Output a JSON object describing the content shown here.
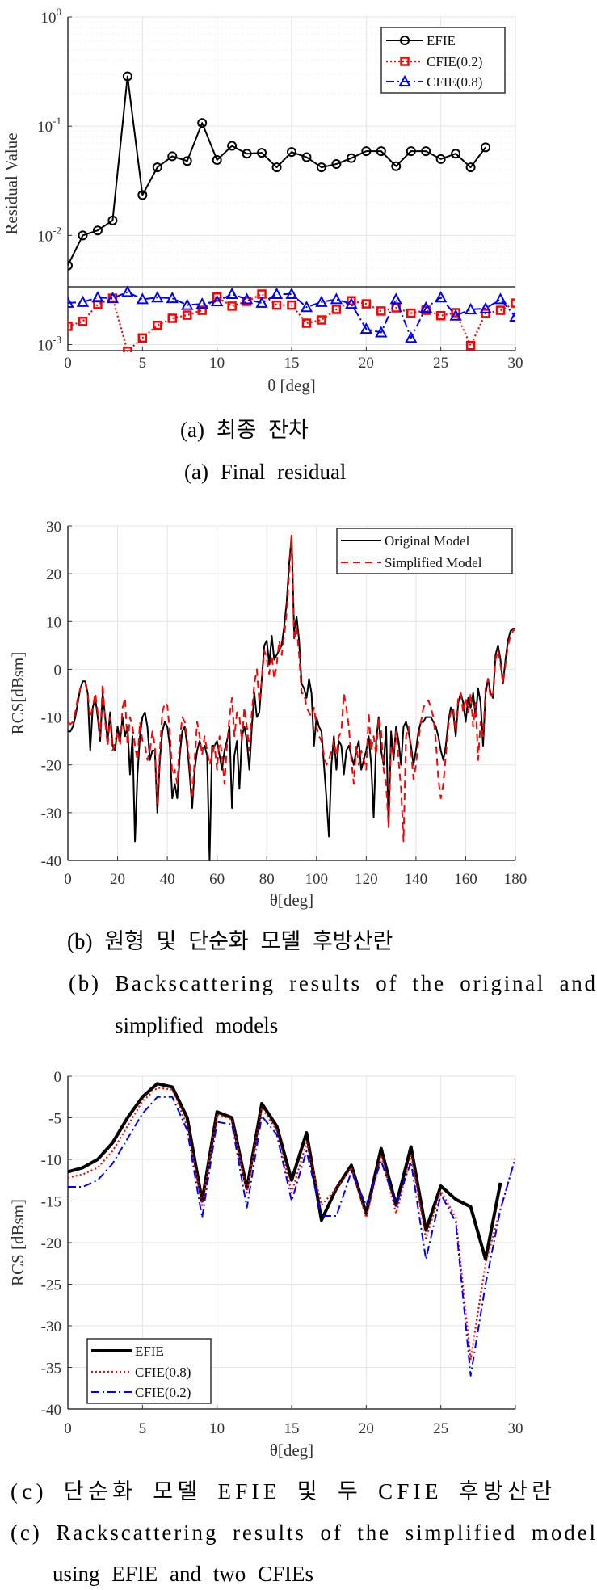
{
  "chart_data": [
    {
      "id": "a",
      "type": "line",
      "yscale": "log",
      "xlabel": "θ [deg]",
      "ylabel": "Residual Value",
      "xlim": [
        0,
        30
      ],
      "ylim": [
        0.00088,
        1
      ],
      "xticks": [
        0,
        5,
        10,
        15,
        20,
        25,
        30
      ],
      "yticks": [
        {
          "value": 1,
          "base": "10",
          "exp": "0"
        },
        {
          "value": 0.1,
          "base": "10",
          "exp": "-1"
        },
        {
          "value": 0.01,
          "base": "10",
          "exp": "-2"
        },
        {
          "value": 0.001,
          "base": "10",
          "exp": "-3"
        }
      ],
      "grid": true,
      "legend_position": "top-right",
      "caption_ko": "(a) 최종 잔차",
      "caption_en": [
        "(a) Final residual"
      ],
      "series": [
        {
          "name": "EFIE",
          "color": "#000000",
          "style": "solid",
          "marker": "circle",
          "x": [
            0,
            1,
            2,
            3,
            4,
            5,
            6,
            7,
            8,
            9,
            10,
            11,
            12,
            13,
            14,
            15,
            16,
            17,
            18,
            19,
            20,
            21,
            22,
            23,
            24,
            25,
            26,
            27,
            28
          ],
          "values": [
            0.0053,
            0.01,
            0.0111,
            0.0137,
            0.286,
            0.0234,
            0.042,
            0.053,
            0.048,
            0.107,
            0.049,
            0.066,
            0.056,
            0.057,
            0.042,
            0.058,
            0.052,
            0.042,
            0.045,
            0.051,
            0.059,
            0.059,
            0.043,
            0.059,
            0.059,
            0.05,
            0.056,
            0.042,
            0.064
          ]
        },
        {
          "name": "CFIE(0.2)",
          "color": "#ff0000",
          "style": "dotted",
          "marker": "square",
          "x": [
            0,
            1,
            2,
            3,
            4,
            5,
            6,
            7,
            8,
            9,
            10,
            11,
            12,
            13,
            14,
            15,
            16,
            17,
            18,
            19,
            20,
            21,
            22,
            23,
            24,
            25,
            26,
            27,
            28,
            29,
            30
          ],
          "values": [
            0.00147,
            0.00163,
            0.00233,
            0.00266,
            0.00087,
            0.00115,
            0.0015,
            0.00174,
            0.00186,
            0.00206,
            0.00272,
            0.00225,
            0.00249,
            0.0029,
            0.0023,
            0.0023,
            0.00157,
            0.00168,
            0.0021,
            0.00252,
            0.00236,
            0.00203,
            0.00217,
            0.00194,
            0.00206,
            0.00184,
            0.00196,
            0.00098,
            0.00193,
            0.00206,
            0.0024
          ]
        },
        {
          "name": "CFIE(0.8)",
          "color": "#0000ff",
          "style": "dashdot",
          "marker": "triangle",
          "x": [
            0,
            1,
            2,
            3,
            4,
            5,
            6,
            7,
            8,
            9,
            10,
            11,
            12,
            13,
            14,
            15,
            16,
            17,
            18,
            19,
            20,
            21,
            22,
            23,
            24,
            25,
            26,
            27,
            28,
            29,
            30
          ],
          "values": [
            0.00241,
            0.00245,
            0.0027,
            0.00266,
            0.00303,
            0.0026,
            0.0027,
            0.00266,
            0.0023,
            0.00236,
            0.00249,
            0.0029,
            0.0026,
            0.00241,
            0.0029,
            0.0029,
            0.0022,
            0.00245,
            0.0026,
            0.00236,
            0.00139,
            0.00129,
            0.0026,
            0.00115,
            0.00217,
            0.0027,
            0.00184,
            0.0021,
            0.00214,
            0.0026,
            0.0018
          ]
        }
      ]
    },
    {
      "id": "b",
      "type": "line",
      "xlabel": "θ[deg]",
      "ylabel": "RCS[dBsm]",
      "xlim": [
        0,
        180
      ],
      "ylim": [
        -40,
        30
      ],
      "xticks": [
        0,
        20,
        40,
        60,
        80,
        100,
        120,
        140,
        160,
        180
      ],
      "yticks": [
        30,
        20,
        10,
        0,
        -10,
        -20,
        -30,
        -40
      ],
      "grid": true,
      "legend_position": "top-right",
      "caption_ko": "(b) 원형 및 단순화 모델 후방산란",
      "caption_en": [
        "(b) Backscattering results of the original and",
        "simplified models"
      ],
      "series": [
        {
          "name": "Original Model",
          "color": "#000000",
          "style": "solid",
          "values": [
            -13,
            -13,
            -12,
            -10,
            -7,
            -4,
            -2.5,
            -2.5,
            -5,
            -17,
            -8,
            -6,
            -10,
            -15,
            -5,
            -10,
            -15,
            -9,
            -16,
            -17,
            -12,
            -15,
            -10,
            -14,
            -12,
            -22,
            -14,
            -36,
            -22,
            -14,
            -10,
            -9,
            -12,
            -19,
            -17,
            -17,
            -30,
            -19,
            -13,
            -11,
            -12,
            -16,
            -27,
            -24,
            -27,
            -18,
            -13,
            -12,
            -16,
            -22,
            -29,
            -21,
            -17,
            -15,
            -17,
            -16,
            -18,
            -40,
            -16,
            -16,
            -15,
            -18,
            -21,
            -17,
            -15,
            -12,
            -29,
            -18,
            -15,
            -25,
            -14,
            -12,
            -15,
            -21,
            -12,
            -5,
            -10,
            -9,
            -2,
            5,
            6,
            1,
            7,
            2,
            3,
            4,
            5,
            9,
            14,
            22,
            28,
            8,
            11,
            6,
            -3,
            -4,
            -6,
            -2,
            -5,
            -16,
            -10,
            -12,
            -13,
            -20,
            -27,
            -35,
            -20,
            -14,
            -21,
            -15,
            -16,
            -22,
            -17,
            -16,
            -18,
            -20,
            -17,
            -15,
            -21,
            -19,
            -17,
            -14,
            -20,
            -31,
            -15,
            -10,
            -17,
            -20,
            -12,
            -33,
            -13,
            -19,
            -12,
            -15,
            -20,
            -12,
            -11,
            -13,
            -16,
            -20,
            -17,
            -13,
            -11,
            -11,
            -10,
            -10,
            -10,
            -11,
            -12,
            -14,
            -17,
            -19,
            -16,
            -11,
            -8,
            -9,
            -14,
            -7,
            -5,
            -7,
            -11,
            -6,
            -8,
            -5,
            -10,
            -4,
            -7,
            -16,
            -5,
            -2,
            -5,
            -6,
            3,
            5,
            2,
            -3,
            2,
            6,
            8,
            8.5,
            8.5
          ]
        },
        {
          "name": "Simplified Model",
          "color": "#ff0000",
          "style": "dashed",
          "values": [
            -11,
            -11.5,
            -11,
            -9,
            -6,
            -4,
            -3,
            -3,
            -5,
            -10,
            -8,
            -5,
            -9,
            -14,
            -3,
            -11,
            -16,
            -10,
            -17,
            -15,
            -13,
            -16,
            -8,
            -6,
            -16,
            -10,
            -12,
            -16,
            -19,
            -11,
            -15,
            -16,
            -19,
            -17,
            -13,
            -16,
            -28,
            -17,
            -9,
            -7,
            -7.5,
            -13,
            -22,
            -21,
            -24,
            -15,
            -10,
            -11,
            -15,
            -20,
            -27,
            -19,
            -11,
            -14,
            -18,
            -14,
            -17,
            -20,
            -18,
            -16,
            -21,
            -14,
            -18,
            -24,
            -16,
            -10,
            -6,
            -14,
            -9,
            -10,
            -15,
            -8,
            -12,
            -17,
            -9,
            -3,
            0,
            -7,
            -2,
            4,
            2,
            -1,
            3,
            -2,
            1,
            6,
            3,
            7,
            12,
            20,
            28,
            6,
            9,
            3,
            -5,
            -5,
            -8,
            -9,
            -10,
            -8,
            -12,
            -14,
            -15,
            -18,
            -20,
            -19,
            -17,
            -15,
            -18,
            -14,
            -13,
            -5,
            -8,
            -12,
            -19,
            -24,
            -16,
            -20,
            -17,
            -19,
            -21,
            -9,
            -17,
            -14,
            -18,
            -10,
            -13,
            -21,
            -24,
            -33,
            -16,
            -18,
            -13,
            -19,
            -25,
            -36,
            -14,
            -12,
            -17,
            -23,
            -20,
            -15,
            -11,
            -8,
            -7,
            -6.5,
            -8,
            -10,
            -15,
            -23,
            -27,
            -24,
            -18,
            -12,
            -9,
            -8,
            -13,
            -6,
            -5,
            -9,
            -6,
            -9,
            -5,
            -12,
            -7,
            -19,
            -11,
            -14,
            -4,
            -2,
            -6,
            -5,
            2,
            4,
            1,
            -3,
            1,
            5,
            7,
            8,
            8.5
          ]
        }
      ]
    },
    {
      "id": "c",
      "type": "line",
      "xlabel": "θ[deg]",
      "ylabel": "RCS [dBsm]",
      "xlim": [
        0,
        30
      ],
      "ylim": [
        -40,
        0
      ],
      "xticks": [
        0,
        5,
        10,
        15,
        20,
        25,
        30
      ],
      "yticks": [
        0,
        -5,
        -10,
        -15,
        -20,
        -25,
        -30,
        -35,
        -40
      ],
      "grid": true,
      "legend_position": "bottom-left",
      "caption_ko": "(c) 단순화 모델 EFIE 및 두 CFIE 후방산란",
      "caption_en": [
        "(c) Rackscattering results of the simplified model",
        "using EFIE and two CFIEs"
      ],
      "series": [
        {
          "name": "EFIE",
          "color": "#000000",
          "style": "thick",
          "values": [
            -11.5,
            -11,
            -10,
            -8,
            -5,
            -2.5,
            -0.9,
            -1.3,
            -5,
            -15,
            -4.3,
            -5,
            -13.5,
            -3.3,
            -6,
            -12.5,
            -6.8,
            -17.3,
            -13.5,
            -10.7,
            -16.5,
            -8.7,
            -15.5,
            -8.5,
            -18.5,
            -13.2,
            -14.8,
            -15.7,
            -22,
            -12.8
          ]
        },
        {
          "name": "CFIE(0.8)",
          "color": "#ff0000",
          "style": "dotted",
          "values": [
            -12.2,
            -11.8,
            -11,
            -9,
            -6,
            -3,
            -1.4,
            -1.6,
            -6,
            -15.5,
            -4.6,
            -5.2,
            -14,
            -3.8,
            -6.5,
            -14,
            -8,
            -15.5,
            -13.5,
            -11,
            -17,
            -9.5,
            -16.5,
            -9.5,
            -19.5,
            -13.8,
            -17,
            -34,
            -22.5,
            -16,
            -9.8
          ]
        },
        {
          "name": "CFIE(0.2)",
          "color": "#0000ff",
          "style": "dashdot",
          "values": [
            -13.3,
            -13.3,
            -12.5,
            -10.5,
            -7.5,
            -4.5,
            -2.5,
            -2.5,
            -6.5,
            -17,
            -5.5,
            -5.8,
            -15.8,
            -4.8,
            -7,
            -15,
            -9,
            -16.8,
            -16.8,
            -11.5,
            -15.5,
            -10.2,
            -15.5,
            -10.3,
            -22,
            -14.2,
            -17.5,
            -36,
            -25,
            -16,
            -9.8
          ]
        }
      ]
    }
  ]
}
